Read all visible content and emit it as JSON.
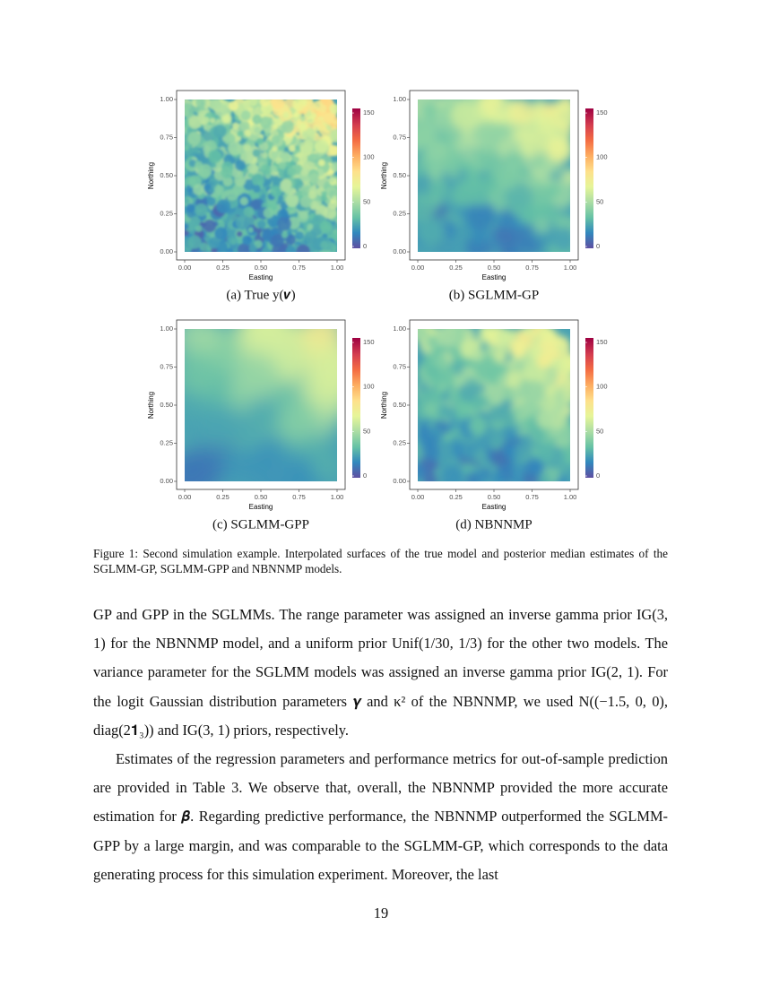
{
  "figure": {
    "panels": [
      {
        "caption": "(a) True y(𝒗)"
      },
      {
        "caption": "(b) SGLMM-GP"
      },
      {
        "caption": "(c) SGLMM-GPP"
      },
      {
        "caption": "(d) NBNNMP"
      }
    ],
    "axis_ticks": [
      "0.00",
      "0.25",
      "0.50",
      "0.75",
      "1.00"
    ],
    "colorbar_ticks": [
      "0",
      "50",
      "100",
      "150"
    ],
    "xlabel": "Easting",
    "ylabel": "Northing",
    "caption": "Figure 1:  Second simulation example.  Interpolated surfaces of the true model and posterior median estimates of the SGLMM-GP, SGLMM-GPP and NBNNMP models."
  },
  "body": {
    "paragraphs": [
      "GP and GPP in the SGLMMs. The range parameter was assigned an inverse gamma prior IG(3, 1) for the NBNNMP model, and a uniform prior Unif(1/30, 1/3) for the other two models. The variance parameter for the SGLMM models was assigned an inverse gamma prior IG(2, 1). For the logit Gaussian distribution parameters 𝜸 and κ² of the NBNNMP, we used N((−1.5, 0, 0), diag(2𝟏₃)) and IG(3, 1) priors, respectively.",
      "Estimates of the regression parameters and performance metrics for out-of-sample prediction are provided in Table 3. We observe that, overall, the NBNNMP provided the more accurate estimation for 𝜷. Regarding predictive performance, the NBNNMP outperformed the SGLMM-GPP by a large margin, and was comparable to the SGLMM-GP, which corresponds to the data generating process for this simulation experiment. Moreover, the last"
    ]
  },
  "page_number": "19"
}
